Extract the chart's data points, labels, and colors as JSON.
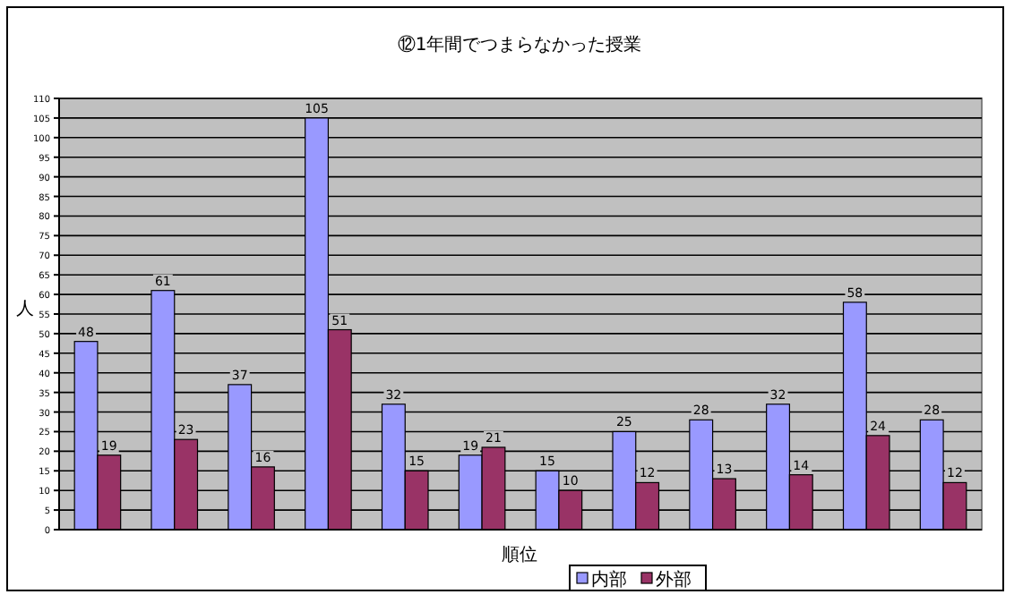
{
  "chart_data": {
    "type": "bar",
    "title": "⑫1年間でつまらなかった授業",
    "xlabel": "順位",
    "ylabel": "人",
    "categories": [
      null,
      null,
      null,
      null,
      null,
      null,
      null,
      null,
      null,
      null,
      null,
      null
    ],
    "series": [
      {
        "name": "内部",
        "color": "#9999ff",
        "values": [
          48,
          61,
          37,
          105,
          32,
          19,
          15,
          25,
          28,
          32,
          58,
          28
        ]
      },
      {
        "name": "外部",
        "color": "#993366",
        "values": [
          19,
          23,
          16,
          51,
          15,
          21,
          10,
          12,
          13,
          14,
          24,
          12
        ]
      }
    ],
    "ylim": [
      0,
      110
    ],
    "yticks": [
      0,
      5,
      10,
      15,
      20,
      25,
      30,
      35,
      40,
      45,
      50,
      55,
      60,
      65,
      70,
      75,
      80,
      85,
      90,
      95,
      100,
      105,
      110
    ],
    "grid": "y",
    "legend": "bottom",
    "data_labels": true
  }
}
